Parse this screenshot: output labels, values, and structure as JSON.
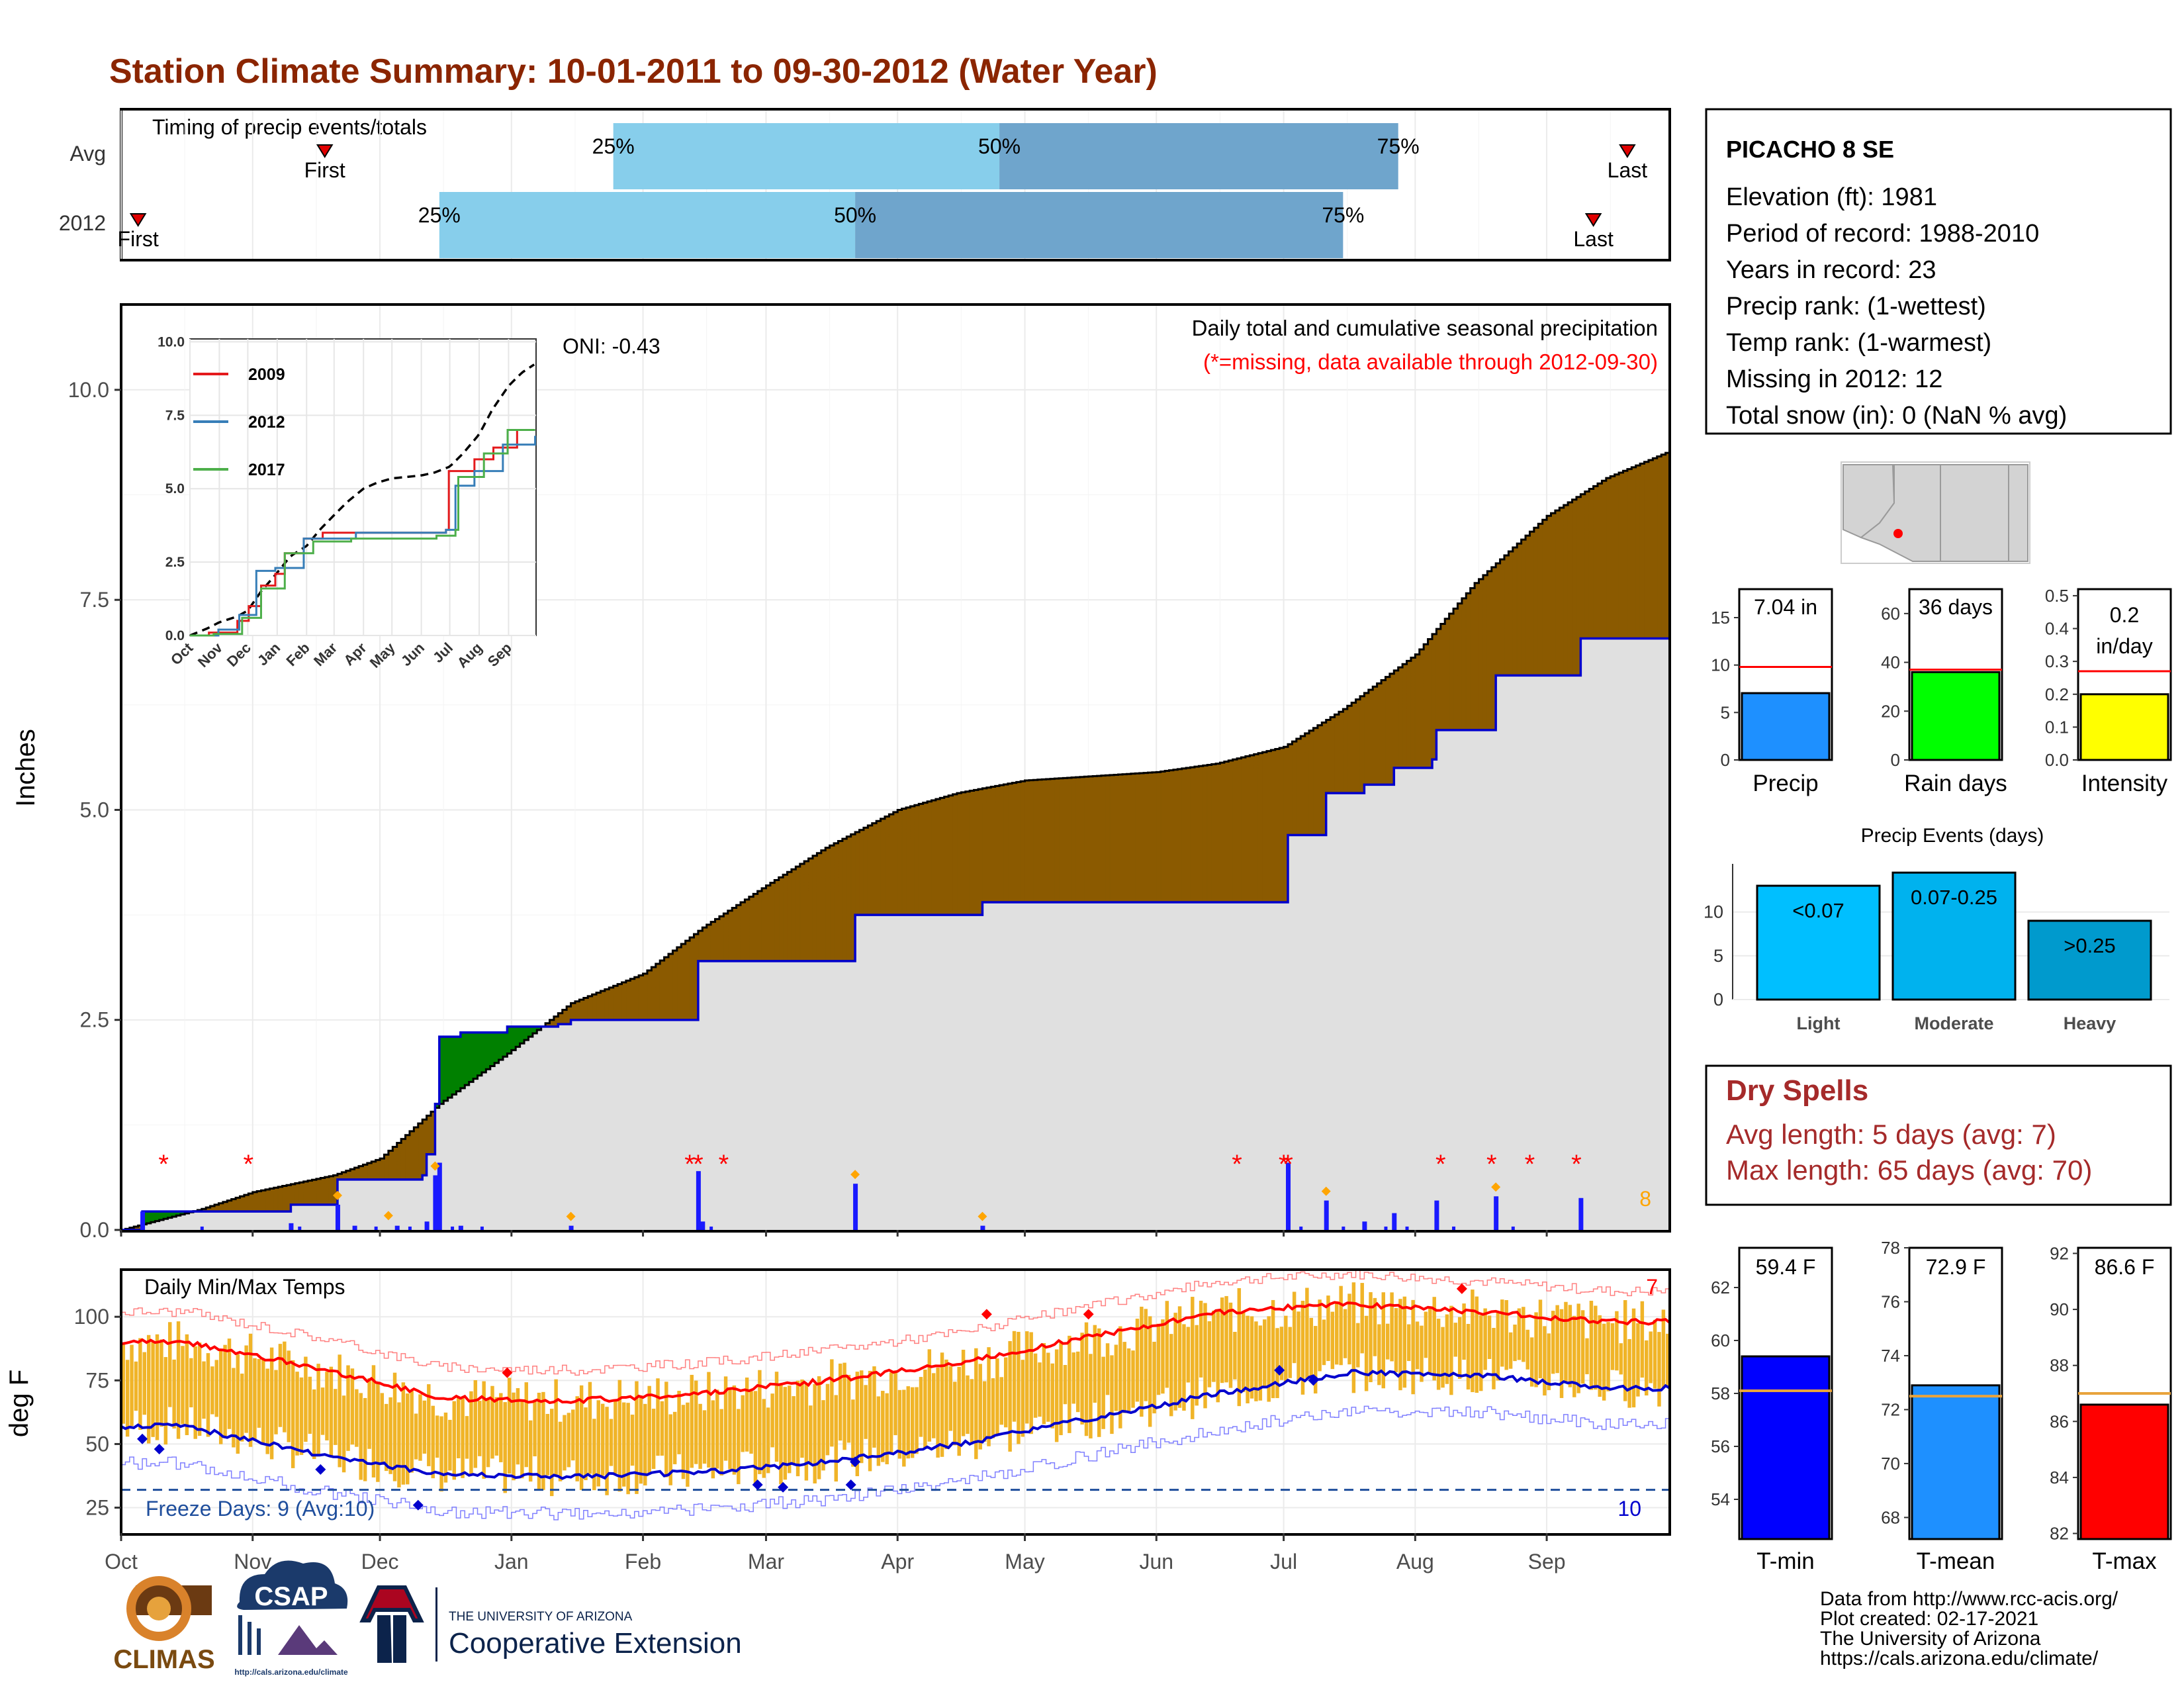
{
  "title": "Station Climate Summary: 10-01-2011 to 09-30-2012 (Water Year)",
  "colors": {
    "title": "#8b2500",
    "brown": "#8b5a00",
    "green": "#008000",
    "gray_fill": "#e0e0e0",
    "blue_line": "#0000cd",
    "bar_blue": "#1a1aff",
    "missing": "#ff0000",
    "orange": "#ffa500",
    "light_blue": "#87ceeb",
    "mid_blue": "#6fa5cc",
    "temp_bar": "#f0b428",
    "tmax": "#ff0000",
    "tmin": "#0000cd",
    "freeze": "#1f4e9c",
    "dry": "#a52a2a"
  },
  "timing": {
    "label": "Timing of precip events/totals",
    "rows": [
      {
        "name": "Avg",
        "first_label": "First",
        "last_label": "Last",
        "p25": "25%",
        "p50": "50%",
        "p75": "75%",
        "first": "2011-11-18",
        "p25_date": "2012-01-25",
        "p50_date": "2012-04-25",
        "p75_date": "2012-07-28",
        "last": "2012-09-20"
      },
      {
        "name": "2012",
        "first_label": "First",
        "last_label": "Last",
        "p25": "25%",
        "p50": "50%",
        "p75": "75%",
        "first": "2011-10-05",
        "p25_date": "2011-12-15",
        "p50_date": "2012-03-22",
        "p75_date": "2012-07-15",
        "last": "2012-09-12"
      }
    ]
  },
  "main": {
    "ylabel": "Inches",
    "annotation_top": "Daily total and cumulative seasonal precipitation",
    "annotation_missing": "(*=missing, data available through 2012-09-30)",
    "oni": "ONI: -0.43",
    "count_label": "8",
    "months": [
      "Oct",
      "Nov",
      "Dec",
      "Jan",
      "Feb",
      "Mar",
      "Apr",
      "May",
      "Jun",
      "Jul",
      "Aug",
      "Sep"
    ],
    "yticks": [
      "0.0",
      "2.5",
      "5.0",
      "7.5",
      "10.0"
    ]
  },
  "inset": {
    "legend": [
      "2009",
      "2012",
      "2017"
    ],
    "legend_colors": [
      "#e41a1c",
      "#377eb8",
      "#4daf4a"
    ],
    "yticks": [
      "0.0",
      "2.5",
      "5.0",
      "7.5",
      "10.0"
    ],
    "months": [
      "Oct",
      "Nov",
      "Dec",
      "Jan",
      "Feb",
      "Mar",
      "Apr",
      "May",
      "Jun",
      "Jul",
      "Aug",
      "Sep"
    ]
  },
  "temps": {
    "label": "Daily Min/Max Temps",
    "ylabel": "deg F",
    "yticks": [
      "25",
      "50",
      "75",
      "100"
    ],
    "freeze_text": "Freeze Days: 9 (Avg:10)",
    "max_count": "7",
    "min_count": "10"
  },
  "station": {
    "name": "PICACHO 8 SE",
    "lines": [
      "Elevation (ft): 1981",
      "Period of record: 1988-2010",
      "Years in record: 23",
      "Precip rank:  (1-wettest)",
      "Temp rank:  (1-warmest)",
      "Missing in 2012: 12",
      "Total snow (in): 0 (NaN % avg)"
    ]
  },
  "panels": [
    {
      "name": "Precip",
      "label": "7.04 in",
      "value": 7.04,
      "avg": 9.8,
      "ymax": 18,
      "ticks": [
        "0",
        "5",
        "10",
        "15"
      ],
      "tickvals": [
        0,
        5,
        10,
        15
      ],
      "color": "#1e90ff"
    },
    {
      "name": "Rain days",
      "label": "36 days",
      "value": 36,
      "avg": 37,
      "ymax": 70,
      "ticks": [
        "0",
        "20",
        "40",
        "60"
      ],
      "tickvals": [
        0,
        20,
        40,
        60
      ],
      "color": "#00ff00"
    },
    {
      "name": "Intensity",
      "label": "0.2 in/day",
      "label1": "0.2",
      "label2": "in/day",
      "value": 0.2,
      "avg": 0.27,
      "ymax": 0.52,
      "ticks": [
        "0.0",
        "0.1",
        "0.2",
        "0.3",
        "0.4",
        "0.5"
      ],
      "tickvals": [
        0,
        0.1,
        0.2,
        0.3,
        0.4,
        0.5
      ],
      "color": "#ffff00"
    }
  ],
  "events": {
    "title": "Precip Events (days)",
    "categories": [
      "Light",
      "Moderate",
      "Heavy"
    ],
    "labels": [
      "<0.07",
      "0.07-0.25",
      ">0.25"
    ],
    "values": [
      13,
      14.5,
      9
    ],
    "ticks": [
      "0",
      "5",
      "10"
    ],
    "colors": [
      "#00bfff",
      "#00b2ee",
      "#009acd"
    ]
  },
  "dry_spells": {
    "title": "Dry Spells",
    "avg_line": "Avg length: 5 days (avg: 7)",
    "max_line": "Max length: 65 days (avg: 70)"
  },
  "temp_panels": [
    {
      "name": "T-min",
      "label": "59.4 F",
      "value": 59.4,
      "avg": 58.1,
      "ymin": 52.5,
      "ymax": 63.5,
      "ticks": [
        "54",
        "56",
        "58",
        "60",
        "62"
      ],
      "tickvals": [
        54,
        56,
        58,
        60,
        62
      ],
      "color": "#0000ff"
    },
    {
      "name": "T-mean",
      "label": "72.9 F",
      "value": 72.9,
      "avg": 72.5,
      "ymin": 67.2,
      "ymax": 78,
      "ticks": [
        "68",
        "70",
        "72",
        "74",
        "76",
        "78"
      ],
      "tickvals": [
        68,
        70,
        72,
        74,
        76,
        78
      ],
      "color": "#1e90ff"
    },
    {
      "name": "T-max",
      "label": "86.6 F",
      "value": 86.6,
      "avg": 87.0,
      "ymin": 81.8,
      "ymax": 92.2,
      "ticks": [
        "82",
        "84",
        "86",
        "88",
        "90",
        "92"
      ],
      "tickvals": [
        82,
        84,
        86,
        88,
        90,
        92
      ],
      "color": "#ff0000"
    }
  ],
  "footer": {
    "lines": [
      "Data from http://www.rcc-acis.org/",
      "Plot created: 02-17-2021",
      "The University of Arizona",
      "https://cals.arizona.edu/climate/"
    ],
    "climas": "CLIMAS",
    "csap": "CSAP",
    "csap_url": "http://cals.arizona.edu/climate",
    "ua_small": "THE UNIVERSITY OF ARIZONA",
    "ua_big": "Cooperative Extension"
  },
  "chart_data": {
    "type": "area",
    "title": "Daily total and cumulative seasonal precipitation",
    "ylabel": "Inches",
    "ylim": [
      0,
      11
    ],
    "x_domain": [
      "2011-10-01",
      "2012-09-30"
    ],
    "cumulative_2012": [
      [
        "2011-10-01",
        0
      ],
      [
        "2011-10-06",
        0.22
      ],
      [
        "2011-11-08",
        0.22
      ],
      [
        "2011-11-10",
        0.3
      ],
      [
        "2011-11-20",
        0.3
      ],
      [
        "2011-11-21",
        0.6
      ],
      [
        "2011-12-11",
        0.65
      ],
      [
        "2011-12-12",
        0.9
      ],
      [
        "2011-12-14",
        1.5
      ],
      [
        "2011-12-15",
        2.3
      ],
      [
        "2011-12-20",
        2.35
      ],
      [
        "2011-12-31",
        2.42
      ],
      [
        "2012-01-12",
        2.45
      ],
      [
        "2012-01-15",
        2.5
      ],
      [
        "2012-02-12",
        2.5
      ],
      [
        "2012-02-14",
        3.2
      ],
      [
        "2012-03-21",
        3.2
      ],
      [
        "2012-03-22",
        3.75
      ],
      [
        "2012-04-20",
        3.75
      ],
      [
        "2012-04-21",
        3.9
      ],
      [
        "2012-07-01",
        3.9
      ],
      [
        "2012-07-02",
        4.7
      ],
      [
        "2012-07-10",
        4.7
      ],
      [
        "2012-07-11",
        5.2
      ],
      [
        "2012-07-20",
        5.3
      ],
      [
        "2012-07-27",
        5.5
      ],
      [
        "2012-08-05",
        5.6
      ],
      [
        "2012-08-06",
        5.95
      ],
      [
        "2012-08-19",
        5.95
      ],
      [
        "2012-08-20",
        6.6
      ],
      [
        "2012-09-08",
        6.6
      ],
      [
        "2012-09-09",
        7.04
      ],
      [
        "2012-09-30",
        7.04
      ]
    ],
    "cumulative_avg": [
      [
        "2011-10-01",
        0
      ],
      [
        "2011-10-20",
        0.25
      ],
      [
        "2011-11-01",
        0.45
      ],
      [
        "2011-11-20",
        0.65
      ],
      [
        "2011-12-01",
        0.85
      ],
      [
        "2011-12-15",
        1.5
      ],
      [
        "2011-12-31",
        2.1
      ],
      [
        "2012-01-15",
        2.7
      ],
      [
        "2012-02-01",
        3.05
      ],
      [
        "2012-02-15",
        3.6
      ],
      [
        "2012-03-01",
        4.1
      ],
      [
        "2012-03-15",
        4.55
      ],
      [
        "2012-04-01",
        5.0
      ],
      [
        "2012-04-15",
        5.2
      ],
      [
        "2012-05-01",
        5.35
      ],
      [
        "2012-06-01",
        5.45
      ],
      [
        "2012-06-15",
        5.55
      ],
      [
        "2012-07-01",
        5.75
      ],
      [
        "2012-07-15",
        6.2
      ],
      [
        "2012-08-01",
        6.85
      ],
      [
        "2012-08-15",
        7.7
      ],
      [
        "2012-09-01",
        8.5
      ],
      [
        "2012-09-15",
        8.95
      ],
      [
        "2012-09-29",
        9.25
      ],
      [
        "2012-09-30",
        10.05
      ]
    ],
    "daily_precip": [
      [
        "2011-10-06",
        0.22
      ],
      [
        "2011-11-10",
        0.08
      ],
      [
        "2011-11-21",
        0.3
      ],
      [
        "2011-11-25",
        0.05
      ],
      [
        "2011-12-05",
        0.05
      ],
      [
        "2011-12-12",
        0.1
      ],
      [
        "2011-12-14",
        0.65
      ],
      [
        "2011-12-15",
        0.8
      ],
      [
        "2011-12-20",
        0.05
      ],
      [
        "2012-01-15",
        0.05
      ],
      [
        "2012-02-14",
        0.7
      ],
      [
        "2012-02-15",
        0.1
      ],
      [
        "2012-03-22",
        0.55
      ],
      [
        "2012-04-21",
        0.05
      ],
      [
        "2012-07-02",
        0.8
      ],
      [
        "2012-07-11",
        0.35
      ],
      [
        "2012-07-20",
        0.1
      ],
      [
        "2012-07-27",
        0.2
      ],
      [
        "2012-08-06",
        0.35
      ],
      [
        "2012-08-20",
        0.4
      ],
      [
        "2012-09-09",
        0.38
      ]
    ],
    "missing_days": [
      "2011-10-11",
      "2011-10-31",
      "2012-02-12",
      "2012-02-14",
      "2012-02-20",
      "2012-06-20",
      "2012-07-01",
      "2012-07-02",
      "2012-08-07",
      "2012-08-19",
      "2012-08-28",
      "2012-09-08"
    ],
    "temps_x": "daily Oct 2011 - Sep 2012",
    "tmax_avg_monthly": [
      90,
      80,
      68,
      67,
      70,
      75,
      82,
      92,
      102,
      105,
      102,
      98
    ],
    "tmin_avg_monthly": [
      57,
      46,
      38,
      37,
      39,
      43,
      50,
      60,
      70,
      78,
      77,
      72
    ],
    "temp_ylim": [
      15,
      118
    ],
    "freeze_threshold": 32
  }
}
